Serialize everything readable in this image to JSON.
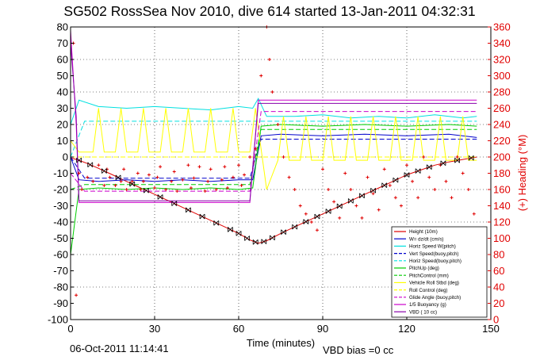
{
  "chart_data": {
    "type": "line",
    "title": "SG502 RossSea Nov 2010, dive 614 started 13-Jan-2011 04:32:31",
    "xlabel": "Time (minutes)",
    "ylabel_right": "(+) Heading (°M)",
    "xlim": [
      0,
      150
    ],
    "ylim_left": [
      -100,
      80
    ],
    "ylim_right": [
      0,
      360
    ],
    "xticks": [
      0,
      30,
      60,
      90,
      120,
      150
    ],
    "yticks_left": [
      80,
      70,
      60,
      50,
      40,
      30,
      20,
      10,
      0,
      -10,
      -20,
      -30,
      -40,
      -50,
      -60,
      -70,
      -80,
      -90,
      -100
    ],
    "yticks_right": [
      360,
      340,
      320,
      300,
      280,
      260,
      240,
      220,
      200,
      180,
      160,
      140,
      120,
      100,
      80,
      60,
      40,
      20,
      0
    ],
    "grid": true,
    "legend_position": "bottom-right",
    "footer_date": "06-Oct-2011 11:14:41",
    "footer_note": "VBD bias =0 cc",
    "colors": {
      "red": "#e00000",
      "black": "#000000",
      "blue": "#0000cc",
      "cyan": "#00e0e0",
      "green": "#00cc00",
      "yellow": "#ffff00",
      "magenta": "#cc00cc",
      "purple": "#8800aa"
    },
    "series": [
      {
        "name": "Height (10m)",
        "color": "#e00000",
        "style": "solid",
        "x": [
          0,
          3,
          6,
          10,
          15,
          20,
          25,
          30,
          35,
          40,
          45,
          50,
          55,
          60,
          64,
          67,
          70,
          75,
          80,
          85,
          90,
          95,
          100,
          105,
          110,
          115,
          120,
          125,
          130,
          135,
          140,
          145
        ],
        "y": [
          -0.5,
          -2,
          -4,
          -7,
          -11,
          -15,
          -19,
          -23,
          -27,
          -31,
          -35,
          -39,
          -43,
          -47,
          -51,
          -53,
          -51.5,
          -47,
          -43,
          -39,
          -35,
          -31,
          -27,
          -23,
          -19,
          -15,
          -11,
          -8,
          -5,
          -3,
          -1.5,
          0
        ]
      },
      {
        "name": "W= dz/dt (cm/s)",
        "color": "#0000cc",
        "style": "solid",
        "x": [
          0,
          3,
          10,
          20,
          30,
          40,
          50,
          60,
          65,
          68,
          75,
          90,
          105,
          120,
          135,
          145
        ],
        "y": [
          0,
          -14,
          -15,
          -14,
          -15,
          -14,
          -15,
          -14,
          -14,
          13,
          14,
          13,
          14,
          13,
          14,
          12
        ]
      },
      {
        "name": "Horiz Speed W(pitch)",
        "color": "#00e0e0",
        "style": "solid",
        "x": [
          0,
          3,
          10,
          20,
          30,
          40,
          50,
          60,
          65,
          67,
          70,
          80,
          90,
          100,
          110,
          120,
          130,
          140,
          145
        ],
        "y": [
          20,
          35,
          31,
          30,
          31,
          30,
          29,
          31,
          30,
          36,
          25,
          25,
          26,
          24,
          25,
          24,
          26,
          24,
          25
        ]
      },
      {
        "name": "Vert Speed(buoy,pitch)",
        "color": "#0000cc",
        "style": "dashed",
        "x": [
          0,
          5,
          30,
          64,
          68,
          100,
          145
        ],
        "y": [
          0,
          -13,
          -13,
          -13,
          11,
          11,
          11
        ]
      },
      {
        "name": "Horiz Speed(buoy,pitch)",
        "color": "#00e0e0",
        "style": "dashed",
        "x": [
          0,
          5,
          30,
          64,
          68,
          100,
          145
        ],
        "y": [
          0,
          22,
          22,
          22,
          22,
          22,
          22
        ]
      },
      {
        "name": "PitchUp (deg)",
        "color": "#00cc00",
        "style": "solid",
        "x": [
          0,
          3,
          10,
          20,
          30,
          40,
          50,
          60,
          65,
          68,
          75,
          90,
          105,
          120,
          135,
          145
        ],
        "y": [
          -60,
          -20,
          -19,
          -20,
          -19,
          -20,
          -19,
          -20,
          -19,
          19,
          20,
          19,
          20,
          19,
          20,
          19
        ]
      },
      {
        "name": "PitchControl (mm)",
        "color": "#00cc00",
        "style": "dashed",
        "x": [
          0,
          5,
          64,
          68,
          145
        ],
        "y": [
          -20,
          -17,
          -17,
          17,
          17
        ]
      },
      {
        "name": "Vehicle Roll Stbd (deg)",
        "color": "#ffff00",
        "style": "solid",
        "x": [
          0,
          3,
          8,
          10,
          12,
          16,
          18,
          20,
          24,
          26,
          28,
          32,
          34,
          36,
          40,
          42,
          44,
          48,
          50,
          52,
          56,
          58,
          60,
          64,
          66,
          70,
          74,
          76,
          78,
          82,
          84,
          86,
          90,
          92,
          94,
          98,
          100,
          102,
          106,
          108,
          110,
          114,
          116,
          118,
          122,
          124,
          126,
          130,
          132,
          134,
          138,
          140,
          142,
          145
        ],
        "y": [
          10,
          3,
          3,
          30,
          3,
          3,
          30,
          3,
          3,
          30,
          3,
          3,
          30,
          3,
          3,
          30,
          3,
          3,
          30,
          3,
          3,
          30,
          3,
          3,
          30,
          -20,
          -2,
          25,
          -2,
          -2,
          25,
          -2,
          -2,
          25,
          -2,
          -2,
          25,
          -2,
          -2,
          25,
          -2,
          -2,
          25,
          -2,
          -2,
          25,
          -2,
          -2,
          25,
          -2,
          -2,
          25,
          -2,
          -2
        ]
      },
      {
        "name": "Roll Control (deg)",
        "color": "#ffff00",
        "style": "dashed",
        "x": [
          0,
          5,
          64,
          68,
          145
        ],
        "y": [
          0,
          0,
          0,
          0,
          0
        ]
      },
      {
        "name": "Glide Angle (buoy,pitch)",
        "color": "#cc00cc",
        "style": "dashed",
        "x": [
          0,
          5,
          64,
          68,
          145
        ],
        "y": [
          -10,
          -21,
          -21,
          28,
          28
        ]
      },
      {
        "name": "1/5 Buoyancy (g)",
        "color": "#cc00cc",
        "style": "solid",
        "x": [
          0,
          2,
          3,
          64,
          67,
          145
        ],
        "y": [
          78,
          20,
          -28,
          -28,
          35,
          35
        ]
      },
      {
        "name": "VBD ( 10 cc)",
        "color": "#8800aa",
        "style": "solid",
        "x": [
          0,
          2,
          3,
          64,
          67,
          145
        ],
        "y": [
          70,
          25,
          -27,
          -27,
          33,
          33
        ]
      }
    ],
    "heading_series": {
      "name": "(+) Heading (°M)",
      "marker": "+",
      "color": "#e00000",
      "x": [
        1,
        2,
        3,
        4,
        6,
        8,
        10,
        12,
        13,
        14,
        16,
        18,
        19,
        20,
        22,
        24,
        25,
        26,
        28,
        30,
        31,
        32,
        34,
        36,
        37,
        38,
        40,
        42,
        43,
        44,
        46,
        48,
        49,
        50,
        52,
        54,
        55,
        56,
        58,
        60,
        61,
        62,
        64,
        66,
        68,
        70,
        71,
        72,
        74,
        76,
        78,
        80,
        82,
        84,
        86,
        88,
        90,
        92,
        94,
        96,
        98,
        100,
        102,
        104,
        106,
        108,
        110,
        112,
        114,
        116,
        118,
        120,
        122,
        124,
        126,
        128,
        130,
        132,
        134,
        136,
        138,
        140,
        142,
        144
      ],
      "y": [
        340,
        30,
        180,
        160,
        175,
        170,
        190,
        165,
        185,
        175,
        165,
        170,
        185,
        160,
        170,
        180,
        160,
        170,
        178,
        162,
        175,
        188,
        160,
        170,
        182,
        158,
        172,
        190,
        162,
        174,
        188,
        158,
        170,
        185,
        160,
        172,
        188,
        162,
        175,
        190,
        165,
        178,
        200,
        210,
        300,
        360,
        320,
        280,
        240,
        200,
        175,
        160,
        140,
        130,
        120,
        110,
        185,
        160,
        145,
        125,
        180,
        160,
        140,
        125,
        175,
        155,
        135,
        185,
        165,
        150,
        140,
        190,
        170,
        150,
        200,
        175,
        160,
        190,
        170,
        150,
        200,
        180,
        160,
        130
      ]
    },
    "markers_x": [
      3,
      7,
      12,
      17,
      22,
      27,
      32,
      37,
      42,
      47,
      52,
      57,
      60,
      63,
      66,
      69,
      72,
      76,
      80,
      84,
      88,
      92,
      96,
      100,
      104,
      108,
      112,
      116,
      120,
      124,
      128,
      133,
      138,
      143
    ]
  }
}
